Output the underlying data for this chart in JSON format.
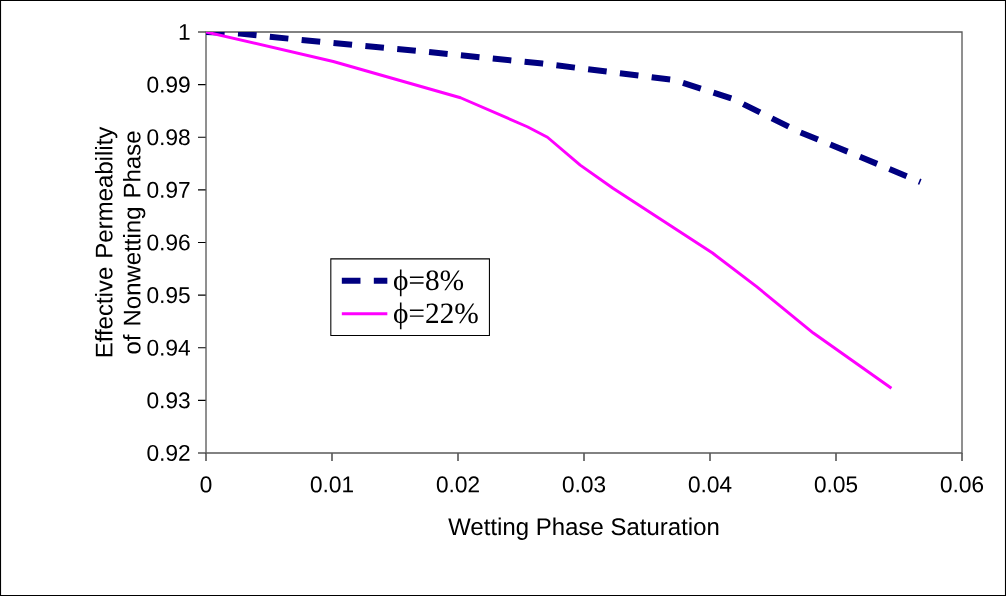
{
  "chart_data": {
    "type": "line",
    "xlabel": "Wetting Phase Saturation",
    "ylabel": "Effective Permeability of Nonwetting Phase",
    "xlim": [
      0,
      0.06
    ],
    "xticks": [
      0,
      0.01,
      0.02,
      0.03,
      0.04,
      0.05,
      0.06
    ],
    "ylim": [
      0.92,
      1
    ],
    "yticks": [
      0.92,
      0.93,
      0.94,
      0.95,
      0.96,
      0.97,
      0.98,
      0.99,
      1
    ],
    "grid": false,
    "legend": "center",
    "marker": "none",
    "series": [
      {
        "name": "ϕ=8%",
        "color": "#000080",
        "line_style": "dashed",
        "x": [
          0,
          0.0027,
          0.0075,
          0.0172,
          0.0267,
          0.0371,
          0.0418,
          0.0471,
          0.0519,
          0.0567
        ],
        "values": [
          1,
          0.9997,
          0.9985,
          0.9963,
          0.994,
          0.9909,
          0.9873,
          0.981,
          0.9763,
          0.9715
        ]
      },
      {
        "name": "ϕ=22%",
        "color": "#ff00ff",
        "line_style": "solid",
        "x": [
          0,
          0.0101,
          0.0202,
          0.0255,
          0.0271,
          0.0297,
          0.0323,
          0.0402,
          0.0437,
          0.0482,
          0.0544
        ],
        "values": [
          1,
          0.9944,
          0.9875,
          0.982,
          0.98,
          0.9747,
          0.9703,
          0.958,
          0.9516,
          0.9428,
          0.9323
        ]
      }
    ]
  }
}
